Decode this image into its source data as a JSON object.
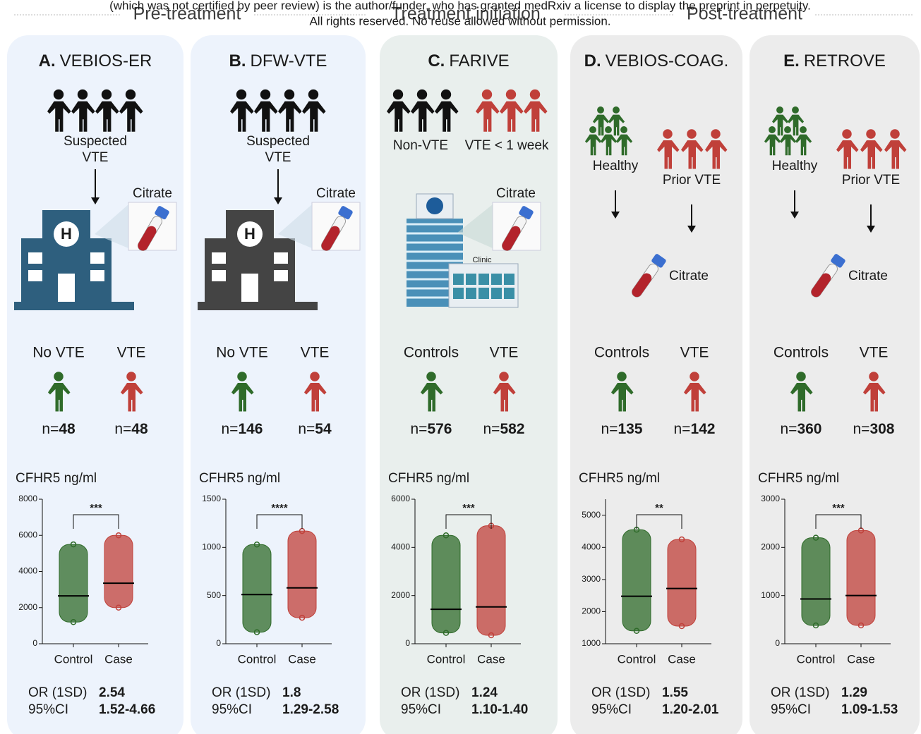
{
  "header": {
    "notice": [
      "(which was not certified by peer review) is the author/funder, who has granted medRxiv a license to display the preprint in perpetuity.",
      "All rights reserved. No reuse allowed without permission."
    ],
    "phases": [
      "Pre-treatment",
      "Treatment initiation",
      "Post-treatment"
    ]
  },
  "panels": [
    {
      "letter": "A.",
      "name": "VEBIOS-ER",
      "population": [
        "Suspected",
        "VTE"
      ],
      "sample": "Citrate",
      "groups": [
        {
          "label": "No VTE",
          "n_prefix": "n=",
          "n": 48
        },
        {
          "label": "VTE",
          "n_prefix": "n=",
          "n": 48
        }
      ],
      "y_label": "CFHR5 ng/ml",
      "or_label": "OR (1SD)",
      "or": 2.54,
      "ci_label": "95%CI",
      "ci": "1.52-4.66"
    },
    {
      "letter": "B.",
      "name": "DFW-VTE",
      "population": [
        "Suspected",
        "VTE"
      ],
      "sample": "Citrate",
      "groups": [
        {
          "label": "No VTE",
          "n_prefix": "n=",
          "n": 146
        },
        {
          "label": "VTE",
          "n_prefix": "n=",
          "n": 54
        }
      ],
      "y_label": "CFHR5 ng/ml",
      "or_label": "OR (1SD)",
      "or": 1.8,
      "ci_label": "95%CI",
      "ci": "1.29-2.58"
    },
    {
      "letter": "C.",
      "name": "FARIVE",
      "populations": [
        "Non-VTE",
        "VTE < 1 week"
      ],
      "sample": "Citrate",
      "clinic": "Clinic",
      "groups": [
        {
          "label": "Controls",
          "n_prefix": "n=",
          "n": 576
        },
        {
          "label": "VTE",
          "n_prefix": "n=",
          "n": 582
        }
      ],
      "y_label": "CFHR5 ng/ml",
      "or_label": "OR (1SD)",
      "or": 1.24,
      "ci_label": "95%CI",
      "ci": "1.10-1.40"
    },
    {
      "letter": "D.",
      "name": "VEBIOS-COAG.",
      "populations": [
        "Healthy",
        "Prior VTE"
      ],
      "sample": "Citrate",
      "groups": [
        {
          "label": "Controls",
          "n_prefix": "n=",
          "n": 135
        },
        {
          "label": "VTE",
          "n_prefix": "n=",
          "n": 142
        }
      ],
      "y_label": "CFHR5 ng/ml",
      "or_label": "OR (1SD)",
      "or": 1.55,
      "ci_label": "95%CI",
      "ci": "1.20-2.01"
    },
    {
      "letter": "E.",
      "name": "RETROVE",
      "populations": [
        "Healthy",
        "Prior VTE"
      ],
      "sample": "Citrate",
      "groups": [
        {
          "label": "Controls",
          "n_prefix": "n=",
          "n": 360
        },
        {
          "label": "VTE",
          "n_prefix": "n=",
          "n": 308
        }
      ],
      "y_label": "CFHR5 ng/ml",
      "or_label": "OR (1SD)",
      "or": 1.29,
      "ci_label": "95%CI",
      "ci": "1.09-1.53"
    }
  ],
  "chart_data": [
    {
      "type": "dot",
      "categories": [
        "Control",
        "Case"
      ],
      "colors": [
        "#2f6b2a",
        "#c0403a"
      ],
      "median": [
        2650,
        3350
      ],
      "min": [
        1200,
        2000
      ],
      "max": [
        5500,
        6000
      ],
      "annotation": "***",
      "ylim": [
        0,
        8000
      ],
      "yticks": [
        0,
        2000,
        4000,
        6000,
        8000
      ]
    },
    {
      "type": "dot",
      "categories": [
        "Control",
        "Case"
      ],
      "colors": [
        "#2f6b2a",
        "#c0403a"
      ],
      "median": [
        510,
        580
      ],
      "min": [
        120,
        270
      ],
      "max": [
        1030,
        1170
      ],
      "annotation": "****",
      "ylim": [
        0,
        1500
      ],
      "yticks": [
        0,
        500,
        1000,
        1500
      ]
    },
    {
      "type": "dot",
      "categories": [
        "Control",
        "Case"
      ],
      "colors": [
        "#2f6b2a",
        "#c0403a"
      ],
      "median": [
        1430,
        1530
      ],
      "min": [
        450,
        350
      ],
      "max": [
        4500,
        4900
      ],
      "annotation": "***",
      "ylim": [
        0,
        6000
      ],
      "yticks": [
        0,
        2000,
        4000,
        6000
      ]
    },
    {
      "type": "dot",
      "categories": [
        "Control",
        "Case"
      ],
      "colors": [
        "#2f6b2a",
        "#c0403a"
      ],
      "median": [
        2480,
        2720
      ],
      "min": [
        1400,
        1550
      ],
      "max": [
        4550,
        4250
      ],
      "annotation": "**",
      "ylim": [
        1000,
        5500
      ],
      "yticks": [
        1000,
        2000,
        3000,
        4000,
        5000
      ]
    },
    {
      "type": "dot",
      "categories": [
        "Control",
        "Case"
      ],
      "colors": [
        "#2f6b2a",
        "#c0403a"
      ],
      "median": [
        930,
        1000
      ],
      "min": [
        380,
        380
      ],
      "max": [
        2200,
        2350
      ],
      "annotation": "***",
      "ylim": [
        0,
        3000
      ],
      "yticks": [
        0,
        1000,
        2000,
        3000
      ]
    }
  ]
}
